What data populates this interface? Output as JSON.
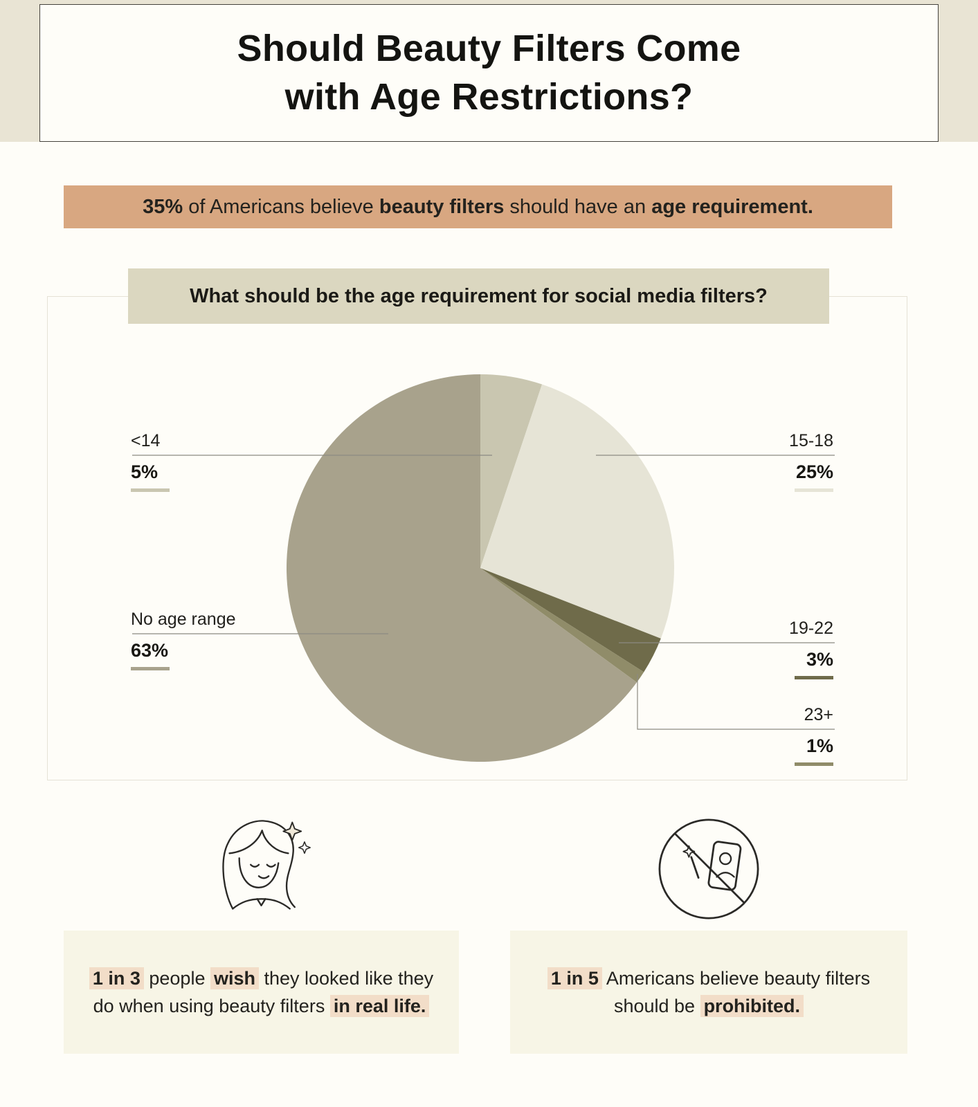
{
  "header": {
    "title_line1": "Should Beauty Filters Come",
    "title_line2": "with Age Restrictions?"
  },
  "banner": {
    "bold1": "35%",
    "text1": " of Americans believe ",
    "bold2": "beauty filters",
    "text2": " should have an ",
    "bold3": "age requirement."
  },
  "chart_data": {
    "type": "pie",
    "title": "What should be the age requirement for social media filters?",
    "unit": "%",
    "start": "top",
    "direction": "clockwise",
    "slices": [
      {
        "label": "<14",
        "value": 5,
        "pct": "5%",
        "color": "#c9c6b0"
      },
      {
        "label": "15-18",
        "value": 25,
        "pct": "25%",
        "color": "#e6e4d6"
      },
      {
        "label": "19-22",
        "value": 3,
        "pct": "3%",
        "color": "#6f6b4a"
      },
      {
        "label": "23+",
        "value": 1,
        "pct": "1%",
        "color": "#908c69"
      },
      {
        "label": "No age range",
        "value": 63,
        "pct": "63%",
        "color": "#a8a28c"
      }
    ]
  },
  "facts": {
    "left": {
      "icon": "woman-sparkles-icon",
      "hl1": "1 in 3",
      "t1": " people ",
      "hl2": "wish",
      "t2": " they looked like they do when using beauty filters ",
      "hl3": "in real life."
    },
    "right": {
      "icon": "no-beauty-filter-icon",
      "hl1": "1 in 5",
      "t1": " Americans believe beauty filters should be ",
      "hl2": "prohibited."
    }
  },
  "colors": {
    "header_band": "#e9e4d4",
    "banner_bg": "#d8a781",
    "chart_title_bg": "#dbd7c0",
    "fact_box_bg": "#f7f5e6",
    "highlight_bg": "#f2ddc8"
  }
}
